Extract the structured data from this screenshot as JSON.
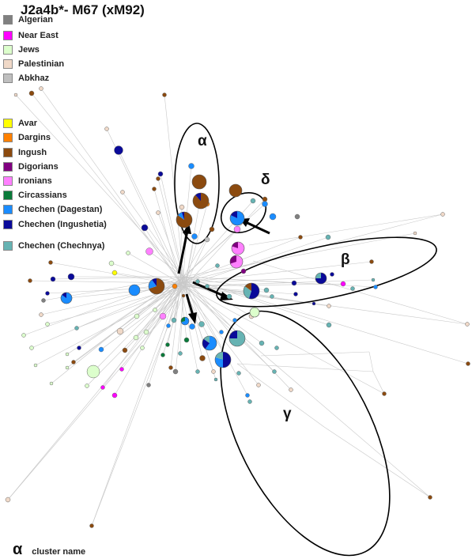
{
  "title": "J2a4b*- M67 (xM92)",
  "legend_group_1": [
    {
      "label": "Algerian",
      "color": "#808080"
    },
    {
      "label": "Near East",
      "color": "#ff00ff"
    },
    {
      "label": "Jews",
      "color": "#dcffcc"
    },
    {
      "label": "Palestinian",
      "color": "#f0d9c8"
    },
    {
      "label": "Abkhaz",
      "color": "#bfbfbf"
    }
  ],
  "legend_group_2": [
    {
      "label": "Avar",
      "color": "#ffff00"
    },
    {
      "label": "Dargins",
      "color": "#ff8000"
    },
    {
      "label": "Ingush",
      "color": "#8b4a0f"
    },
    {
      "label": "Digorians",
      "color": "#800080"
    },
    {
      "label": "Ironians",
      "color": "#ff80ff"
    },
    {
      "label": "Circassians",
      "color": "#0a7a3a"
    },
    {
      "label": "Chechen (Dagestan)",
      "color": "#1a8cff"
    },
    {
      "label": "Chechen (Ingushetia)",
      "color": "#0a0a99"
    },
    {
      "label": "Chechen (Chechnya)",
      "color": "#66b3b3"
    }
  ],
  "clusters": {
    "alpha": "α",
    "beta": "β",
    "gamma": "γ",
    "delta": "δ"
  },
  "footnote": {
    "symbol": "α",
    "text": "cluster name"
  }
}
